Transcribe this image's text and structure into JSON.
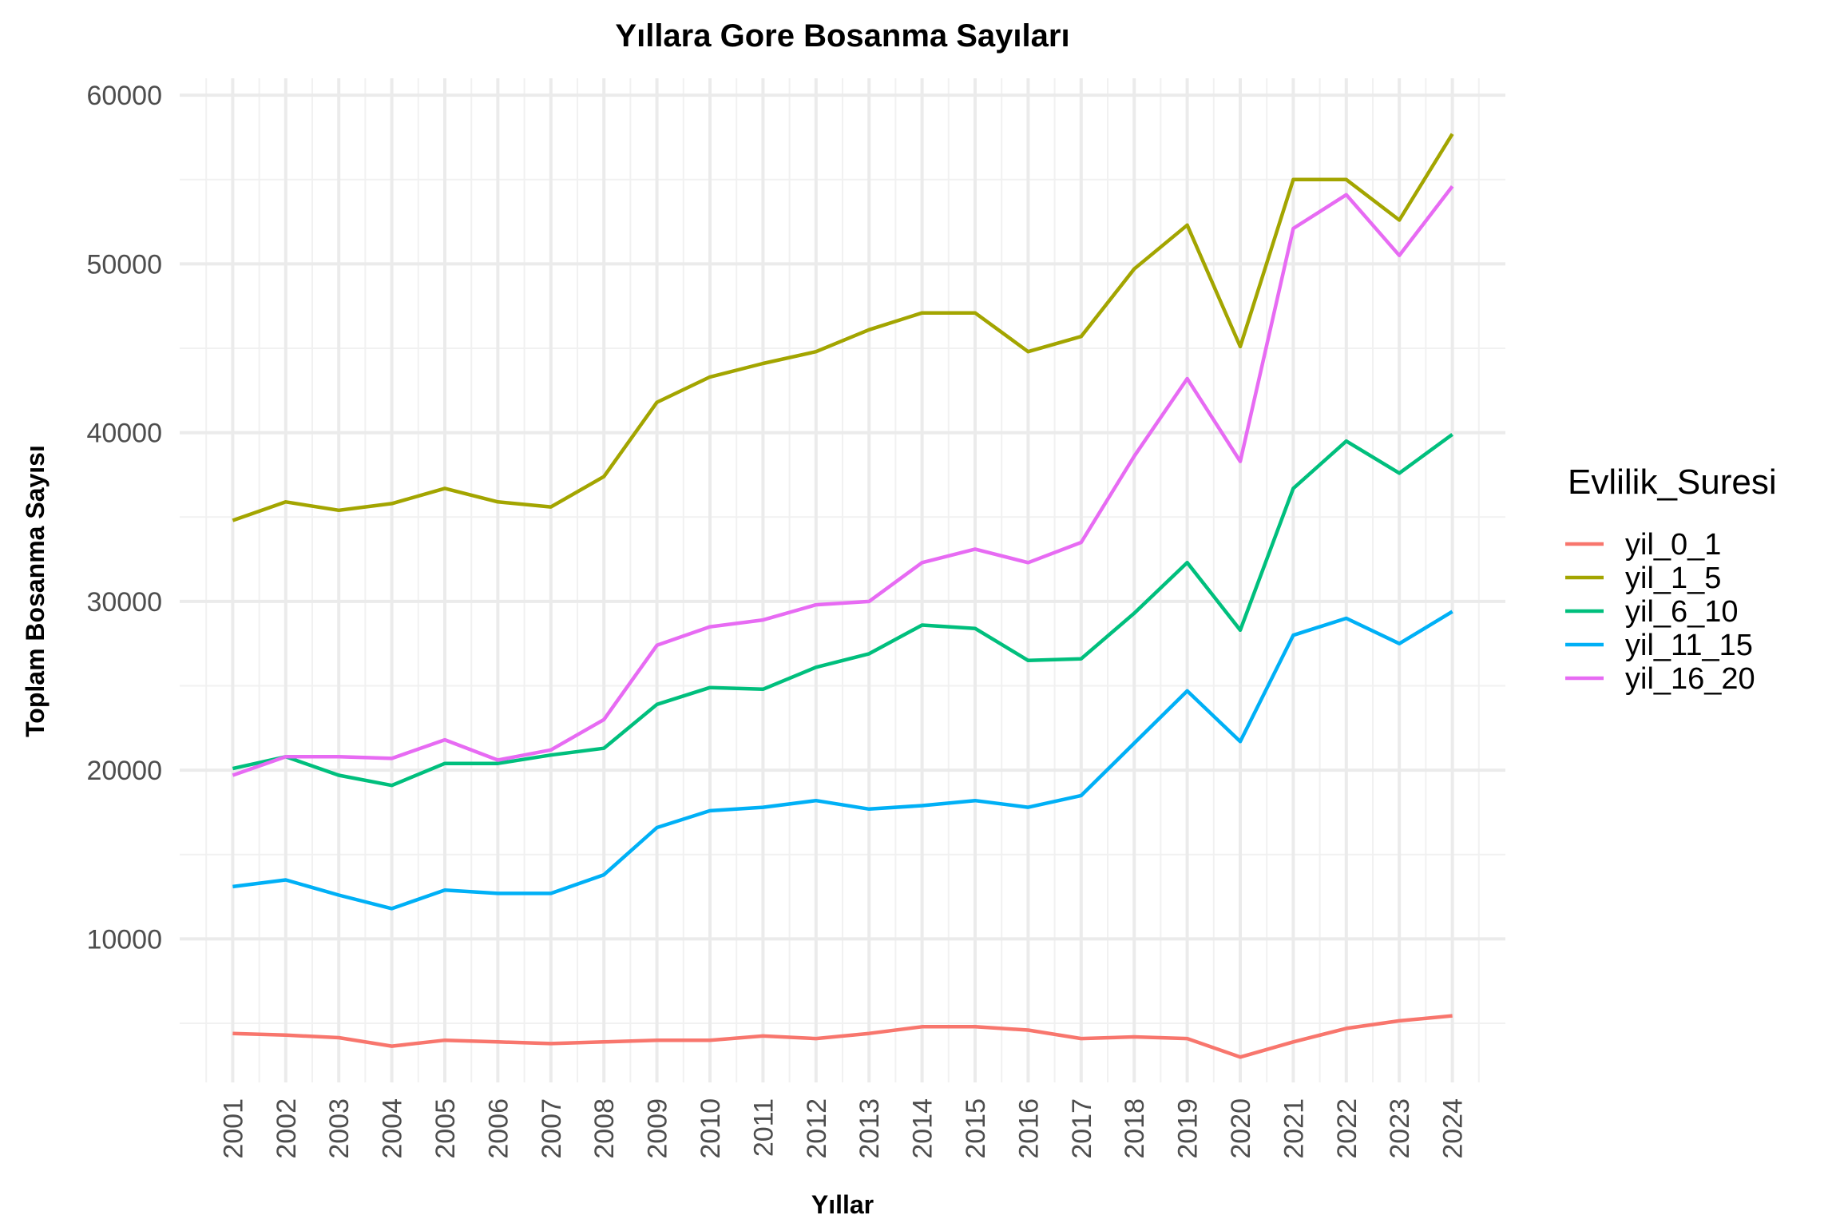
{
  "chart_data": {
    "type": "line",
    "title": "Yıllara Gore Bosanma Sayıları",
    "xlabel": "Yıllar",
    "ylabel": "Toplam Bosanma Sayısı",
    "x": [
      2001,
      2002,
      2003,
      2004,
      2005,
      2006,
      2007,
      2008,
      2009,
      2010,
      2011,
      2012,
      2013,
      2014,
      2015,
      2016,
      2017,
      2018,
      2019,
      2020,
      2021,
      2022,
      2023,
      2024
    ],
    "xlim": [
      2000,
      2025
    ],
    "ylim": [
      1500,
      61000
    ],
    "yticks": [
      10000,
      20000,
      30000,
      40000,
      50000,
      60000
    ],
    "grid": true,
    "legend_title": "Evlilik_Suresi",
    "legend_position": "right",
    "series": [
      {
        "name": "yil_0_1",
        "color": "#F8766D",
        "values": [
          4400,
          4300,
          4150,
          3650,
          4000,
          3900,
          3800,
          3900,
          4000,
          4000,
          4250,
          4100,
          4400,
          4800,
          4800,
          4600,
          4100,
          4200,
          4100,
          3000,
          3900,
          4700,
          5150,
          5450
        ]
      },
      {
        "name": "yil_1_5",
        "color": "#A3A500",
        "values": [
          34800,
          35900,
          35400,
          35800,
          36700,
          35900,
          35600,
          37400,
          41800,
          43300,
          44100,
          44800,
          46100,
          47100,
          47100,
          44800,
          45700,
          49700,
          52300,
          45100,
          55000,
          55000,
          52600,
          57700
        ]
      },
      {
        "name": "yil_6_10",
        "color": "#00BF7D",
        "values": [
          20100,
          20800,
          19700,
          19100,
          20400,
          20400,
          20900,
          21300,
          23900,
          24900,
          24800,
          26100,
          26900,
          28600,
          28400,
          26500,
          26600,
          29300,
          32300,
          28300,
          36700,
          39500,
          37600,
          39900
        ]
      },
      {
        "name": "yil_11_15",
        "color": "#00B0F6",
        "values": [
          13100,
          13500,
          12600,
          11800,
          12900,
          12700,
          12700,
          13800,
          16600,
          17600,
          17800,
          18200,
          17700,
          17900,
          18200,
          17800,
          18500,
          21600,
          24700,
          21700,
          28000,
          29000,
          27500,
          29400
        ]
      },
      {
        "name": "yil_16_20",
        "color": "#E76BF3",
        "values": [
          19700,
          20800,
          20800,
          20700,
          21800,
          20600,
          21200,
          23000,
          27400,
          28500,
          28900,
          29800,
          30000,
          32300,
          33100,
          32300,
          33500,
          38600,
          43200,
          38300,
          52100,
          54100,
          50500,
          54600
        ]
      }
    ]
  }
}
